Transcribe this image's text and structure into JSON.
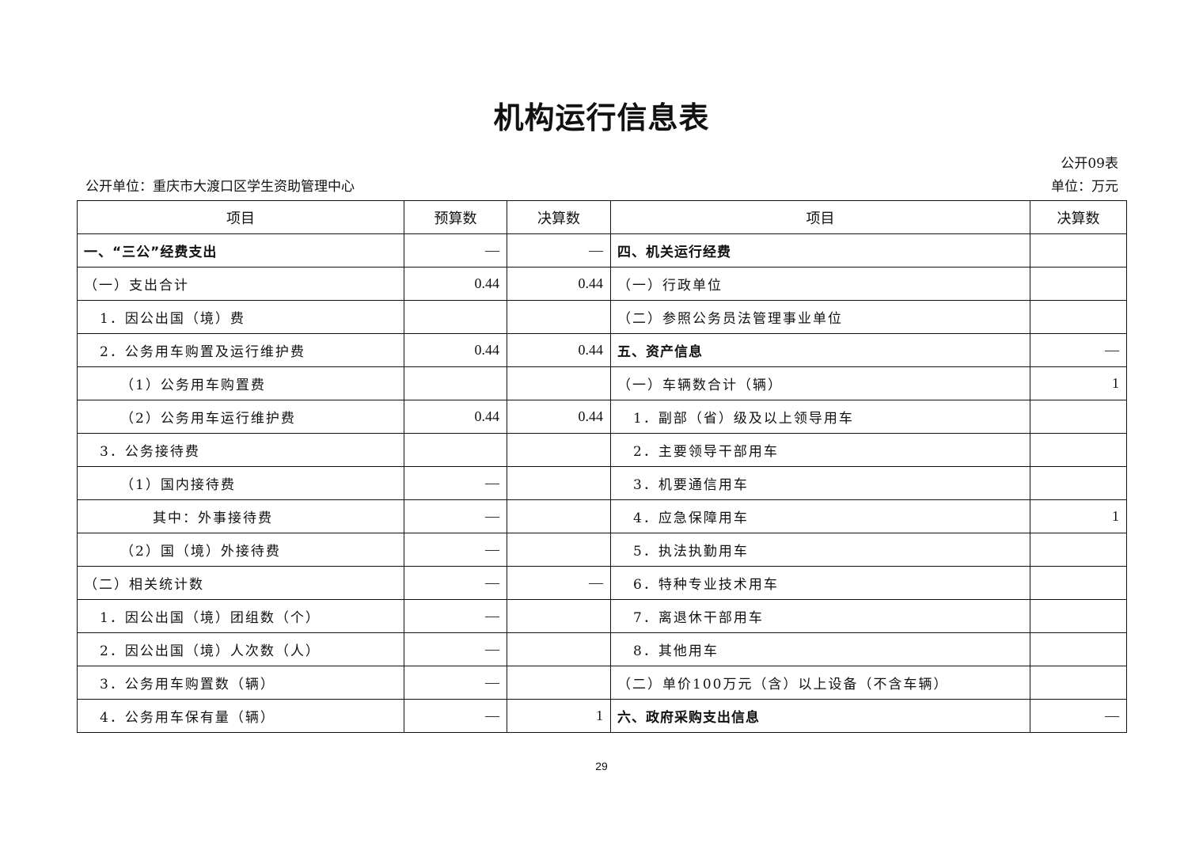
{
  "title": "机构运行信息表",
  "form_no": "公开09表",
  "unit": "单位：万元",
  "org": "公开单位：重庆市大渡口区学生资助管理中心",
  "headers": [
    "项目",
    "预算数",
    "决算数",
    "项目",
    "决算数"
  ],
  "rows": [
    {
      "left": "一、“三公”经费支出",
      "lb": 1,
      "ll": 0,
      "budget": "—",
      "actual": "—",
      "right": "四、机关运行经费",
      "rb": 1,
      "rl": 0,
      "ractual": ""
    },
    {
      "left": "（一）支出合计",
      "ll": 0,
      "budget": "0.44",
      "actual": "0.44",
      "right": "（一）行政单位",
      "rl": 0,
      "ractual": ""
    },
    {
      "left": "1．因公出国（境）费",
      "ll": 1,
      "budget": "",
      "actual": "",
      "right": "（二）参照公务员法管理事业单位",
      "rl": 0,
      "ractual": ""
    },
    {
      "left": "2．公务用车购置及运行维护费",
      "ll": 1,
      "budget": "0.44",
      "actual": "0.44",
      "right": "五、资产信息",
      "rb": 1,
      "rl": 0,
      "ractual": "—"
    },
    {
      "left": "（1）公务用车购置费",
      "ll": 2,
      "budget": "",
      "actual": "",
      "right": "（一）车辆数合计（辆）",
      "rl": 0,
      "ractual": "1"
    },
    {
      "left": "（2）公务用车运行维护费",
      "ll": 2,
      "budget": "0.44",
      "actual": "0.44",
      "right": "1．副部（省）级及以上领导用车",
      "rl": 1,
      "ractual": ""
    },
    {
      "left": "3．公务接待费",
      "ll": 1,
      "budget": "",
      "actual": "",
      "right": "2．主要领导干部用车",
      "rl": 1,
      "ractual": ""
    },
    {
      "left": "（1）国内接待费",
      "ll": 2,
      "budget": "—",
      "actual": "",
      "right": "3．机要通信用车",
      "rl": 1,
      "ractual": ""
    },
    {
      "left": "其中：外事接待费",
      "ll": 3,
      "budget": "—",
      "actual": "",
      "right": "4．应急保障用车",
      "rl": 1,
      "ractual": "1"
    },
    {
      "left": "（2）国（境）外接待费",
      "ll": 2,
      "budget": "—",
      "actual": "",
      "right": "5．执法执勤用车",
      "rl": 1,
      "ractual": ""
    },
    {
      "left": "（二）相关统计数",
      "ll": 0,
      "budget": "—",
      "actual": "—",
      "right": "6．特种专业技术用车",
      "rl": 1,
      "ractual": ""
    },
    {
      "left": "1．因公出国（境）团组数（个）",
      "ll": 1,
      "budget": "—",
      "actual": "",
      "right": "7．离退休干部用车",
      "rl": 1,
      "ractual": ""
    },
    {
      "left": "2．因公出国（境）人次数（人）",
      "ll": 1,
      "budget": "—",
      "actual": "",
      "right": "8．其他用车",
      "rl": 1,
      "ractual": ""
    },
    {
      "left": "3．公务用车购置数（辆）",
      "ll": 1,
      "budget": "—",
      "actual": "",
      "right": "（二）单价100万元（含）以上设备（不含车辆）",
      "rl": 0,
      "ractual": ""
    },
    {
      "left": "4．公务用车保有量（辆）",
      "ll": 1,
      "budget": "—",
      "actual": "1",
      "right": "六、政府采购支出信息",
      "rb": 1,
      "rl": 0,
      "ractual": "—"
    }
  ],
  "page_number": "29"
}
